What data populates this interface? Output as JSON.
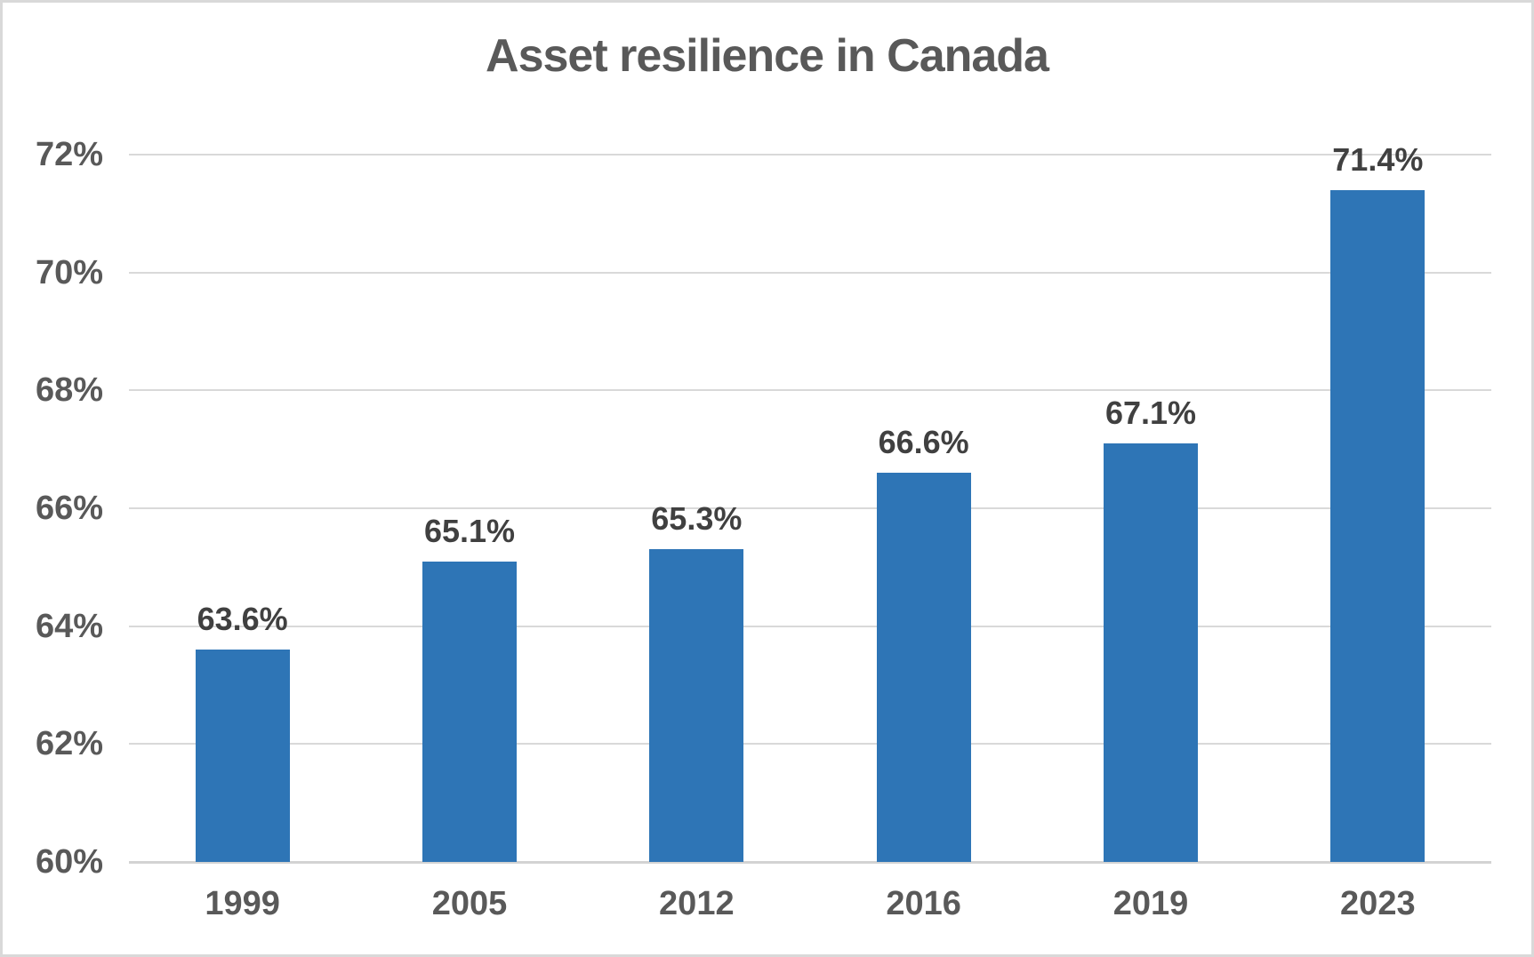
{
  "chart_data": {
    "type": "bar",
    "title": "Asset resilience in Canada",
    "categories": [
      "1999",
      "2005",
      "2012",
      "2016",
      "2019",
      "2023"
    ],
    "values": [
      63.6,
      65.1,
      65.3,
      66.6,
      67.1,
      71.4
    ],
    "data_labels": [
      "63.6%",
      "65.1%",
      "65.3%",
      "66.6%",
      "67.1%",
      "71.4%"
    ],
    "y_ticks": [
      {
        "value": 72,
        "label": "72%"
      },
      {
        "value": 70,
        "label": "70%"
      },
      {
        "value": 68,
        "label": "68%"
      },
      {
        "value": 66,
        "label": "66%"
      },
      {
        "value": 64,
        "label": "64%"
      },
      {
        "value": 62,
        "label": "62%"
      },
      {
        "value": 60,
        "label": "60%"
      }
    ],
    "ylim": [
      60,
      72
    ],
    "xlabel": "",
    "ylabel": "",
    "grid": true,
    "legend": false,
    "colors": {
      "bar": "#2E75B6",
      "title_text": "#595959",
      "axis_text": "#595959",
      "data_label_text": "#404040",
      "gridline": "#D9D9D9",
      "axis_line": "#D3D3D3",
      "border": "#D9D9D9",
      "background": "#FFFFFF"
    }
  }
}
